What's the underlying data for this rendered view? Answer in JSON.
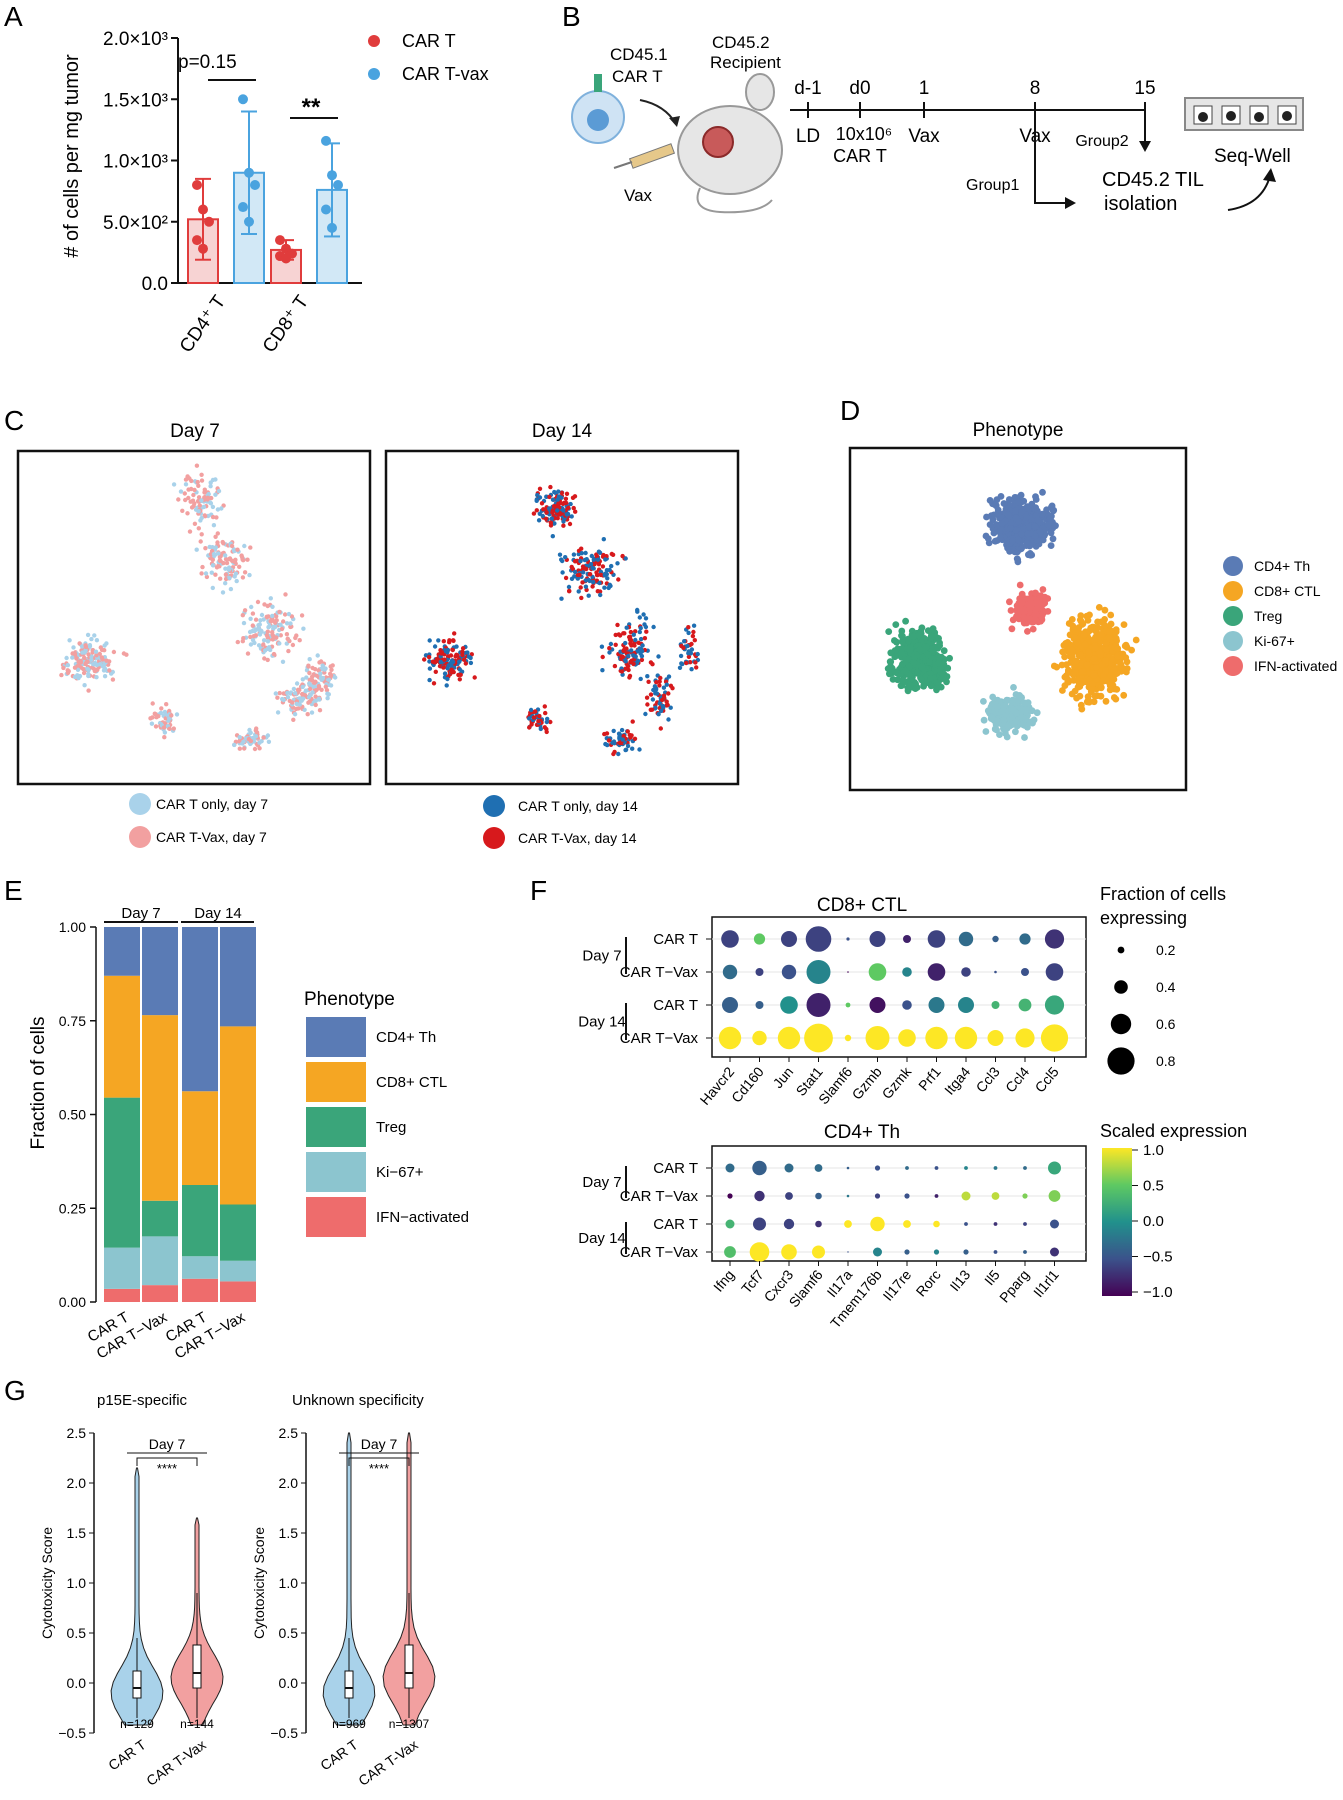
{
  "panels": {
    "A": "A",
    "B": "B",
    "C": "C",
    "D": "D",
    "E": "E",
    "F": "F",
    "G": "G"
  },
  "colors": {
    "red": "#e03c3c",
    "blue": "#4aa3df",
    "lightblue": "#a9d2ea",
    "pink": "#f2a0a0",
    "darkblue": "#1f6fb2",
    "brightred": "#d7191c",
    "cd4": "#5a7bb5",
    "cd8": "#f5a623",
    "treg": "#3aa57a",
    "ki67": "#8cc5cf",
    "ifn": "#ee6c6c"
  },
  "panelA": {
    "chart_data": {
      "type": "bar",
      "categories": [
        "CD4⁺ T",
        "CD8⁺ T"
      ],
      "series": [
        {
          "name": "CAR T",
          "values": [
            520,
            270
          ],
          "sd": [
            330,
            80
          ],
          "points": [
            [
              800,
              600,
              500,
              350,
              280
            ],
            [
              350,
              280,
              240,
              220,
              200
            ]
          ]
        },
        {
          "name": "CAR T-vax",
          "values": [
            900,
            760
          ],
          "sd": [
            500,
            380
          ],
          "points": [
            [
              1500,
              900,
              800,
              620,
              500
            ],
            [
              1160,
              880,
              800,
              600,
              450
            ]
          ]
        }
      ],
      "ylabel": "# of cells per mg tumor",
      "ylim": [
        0,
        2000
      ],
      "yticks": [
        "0.0",
        "5.0×10²",
        "1.0×10³",
        "1.5×10³",
        "2.0×10³"
      ],
      "annotations": [
        "p=0.15",
        "**"
      ]
    },
    "legend": [
      "CAR T",
      "CAR T-vax"
    ]
  },
  "panelB": {
    "cd451": "CD45.1",
    "cart": "CAR T",
    "cd452": "CD45.2",
    "recipient": "Recipient",
    "vax": "Vax",
    "timeline": [
      {
        "day": "d-1",
        "below": "LD"
      },
      {
        "day": "d0",
        "below": "10x10⁶ CAR T"
      },
      {
        "day": "1",
        "below": "Vax"
      },
      {
        "day": "8",
        "below": "Vax"
      },
      {
        "day": "15",
        "below": "Group2"
      }
    ],
    "group1": "Group1",
    "til": "CD45.2 TIL isolation",
    "seqwell": "Seq-Well"
  },
  "panelC": {
    "day7": "Day 7",
    "day14": "Day 14",
    "legend7": [
      "CAR T only, day 7",
      "CAR T-Vax, day 7"
    ],
    "legend14": [
      "CAR T only, day 14",
      "CAR T-Vax, day 14"
    ]
  },
  "panelD": {
    "title": "Phenotype",
    "legend": [
      "CD4+ Th",
      "CD8+ CTL",
      "Treg",
      "Ki-67+",
      "IFN-activated"
    ]
  },
  "panelE": {
    "chart_data": {
      "type": "bar",
      "stacked": true,
      "categories": [
        "CAR T",
        "CAR T−Vax",
        "CAR T",
        "CAR T−Vax"
      ],
      "groups": [
        "Day 7",
        "Day 14"
      ],
      "series": [
        {
          "name": "IFN−activated",
          "values": [
            0.035,
            0.045,
            0.062,
            0.055
          ]
        },
        {
          "name": "Ki−67+",
          "values": [
            0.11,
            0.13,
            0.06,
            0.055
          ]
        },
        {
          "name": "Treg",
          "values": [
            0.4,
            0.095,
            0.19,
            0.15
          ]
        },
        {
          "name": "CD8+ CTL",
          "values": [
            0.325,
            0.495,
            0.25,
            0.475
          ]
        },
        {
          "name": "CD4+ Th",
          "values": [
            0.13,
            0.235,
            0.438,
            0.265
          ]
        }
      ],
      "ylabel": "Fraction of cells",
      "yticks": [
        "0.00",
        "0.25",
        "0.50",
        "0.75",
        "1.00"
      ],
      "legend_title": "Phenotype",
      "legend": [
        "CD4+ Th",
        "CD8+ CTL",
        "Treg",
        "Ki−67+",
        "IFN−activated"
      ]
    }
  },
  "panelF": {
    "cd8": {
      "title": "CD8+ CTL",
      "genes": [
        "Havcr2",
        "Cd160",
        "Jun",
        "Stat1",
        "Slamf6",
        "Gzmb",
        "Gzmk",
        "Prf1",
        "Itga4",
        "Ccl3",
        "Ccl4",
        "Ccl5"
      ],
      "rows": [
        "CAR T",
        "CAR T−Vax",
        "CAR T",
        "CAR T−Vax"
      ],
      "sizes": [
        [
          0.55,
          0.35,
          0.5,
          0.8,
          0.1,
          0.5,
          0.25,
          0.55,
          0.45,
          0.2,
          0.35,
          0.6
        ],
        [
          0.45,
          0.25,
          0.45,
          0.75,
          0.05,
          0.55,
          0.3,
          0.55,
          0.3,
          0.08,
          0.25,
          0.55
        ],
        [
          0.5,
          0.25,
          0.55,
          0.75,
          0.15,
          0.5,
          0.3,
          0.5,
          0.5,
          0.25,
          0.4,
          0.6
        ],
        [
          0.7,
          0.45,
          0.7,
          0.9,
          0.2,
          0.75,
          0.55,
          0.7,
          0.7,
          0.5,
          0.6,
          0.85
        ]
      ],
      "expr": [
        [
          -0.6,
          0.5,
          -0.6,
          -0.6,
          -0.5,
          -0.6,
          -0.8,
          -0.6,
          -0.3,
          -0.4,
          -0.3,
          -0.7
        ],
        [
          -0.3,
          -0.6,
          -0.5,
          -0.1,
          -1.0,
          0.5,
          -0.1,
          -0.8,
          -0.6,
          -0.5,
          -0.5,
          -0.6
        ],
        [
          -0.4,
          -0.4,
          0.0,
          -0.8,
          0.5,
          -0.9,
          -0.5,
          -0.2,
          -0.1,
          0.3,
          0.3,
          0.2
        ],
        [
          1.0,
          1.0,
          1.0,
          1.0,
          1.0,
          1.0,
          1.0,
          1.0,
          1.0,
          1.0,
          1.0,
          1.0
        ]
      ]
    },
    "cd4": {
      "title": "CD4+ Th",
      "genes": [
        "Ifng",
        "Tcf7",
        "Cxcr3",
        "Slamf6",
        "Il17a",
        "Tmem176b",
        "Il17re",
        "Rorc",
        "Il13",
        "Il5",
        "Pparg",
        "Il1rl1"
      ],
      "rows": [
        "CAR T",
        "CAR T−Vax",
        "CAR T",
        "CAR T−Vax"
      ],
      "sizes": [
        [
          0.35,
          0.55,
          0.35,
          0.3,
          0.1,
          0.2,
          0.15,
          0.15,
          0.15,
          0.15,
          0.15,
          0.5
        ],
        [
          0.2,
          0.4,
          0.3,
          0.25,
          0.1,
          0.2,
          0.2,
          0.15,
          0.35,
          0.3,
          0.2,
          0.45
        ],
        [
          0.35,
          0.5,
          0.4,
          0.25,
          0.3,
          0.55,
          0.3,
          0.25,
          0.15,
          0.15,
          0.15,
          0.35
        ],
        [
          0.45,
          0.75,
          0.6,
          0.5,
          0.05,
          0.35,
          0.2,
          0.2,
          0.2,
          0.15,
          0.15,
          0.35
        ]
      ],
      "expr": [
        [
          -0.3,
          -0.4,
          -0.3,
          -0.3,
          -0.4,
          -0.5,
          -0.3,
          -0.5,
          -0.1,
          -0.2,
          -0.3,
          0.2
        ],
        [
          -1.0,
          -0.7,
          -0.6,
          -0.4,
          -0.2,
          -0.6,
          -0.5,
          -0.8,
          0.8,
          0.8,
          0.6,
          0.6
        ],
        [
          0.3,
          -0.6,
          -0.6,
          -0.7,
          1.0,
          1.0,
          1.0,
          1.0,
          -0.5,
          -0.7,
          -0.6,
          -0.5
        ],
        [
          0.4,
          1.0,
          1.0,
          1.0,
          -0.5,
          -0.1,
          -0.4,
          -0.1,
          -0.4,
          -0.5,
          -0.4,
          -0.7
        ]
      ]
    },
    "day7": "Day 7",
    "day14": "Day 14",
    "size_title": "Fraction of cells expressing",
    "size_vals": [
      "0.2",
      "0.4",
      "0.6",
      "0.8"
    ],
    "scale_title": "Scaled expression",
    "scale_vals": [
      "1.0",
      "0.5",
      "0.0",
      "−0.5",
      "−1.0"
    ]
  },
  "panelG": {
    "left": {
      "title": "p15E-specific",
      "n": [
        "n=129",
        "n=144"
      ]
    },
    "right": {
      "title": "Unknown specificity",
      "n": [
        "n=969",
        "n=1307"
      ]
    },
    "day": "Day 7",
    "sig": "****",
    "ylabel": "Cytotoxicity Score",
    "yticks": [
      "−0.5",
      "0.0",
      "0.5",
      "1.0",
      "1.5",
      "2.0",
      "2.5"
    ],
    "xcats": [
      "CAR T",
      "CAR T-Vax"
    ]
  }
}
